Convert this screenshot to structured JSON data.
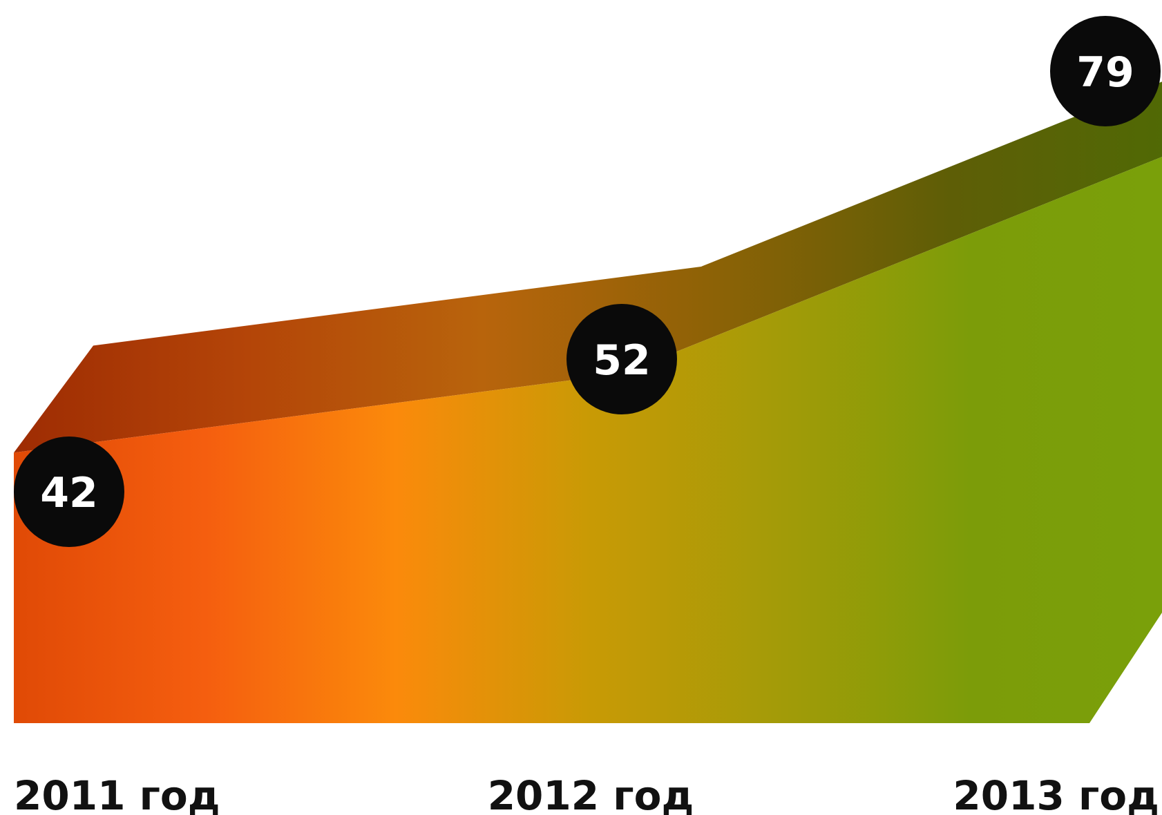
{
  "chart_data": {
    "type": "area",
    "categories": [
      "2011 год",
      "2012 год",
      "2013 год"
    ],
    "values": [
      42,
      52,
      79
    ],
    "data_labels": [
      "42",
      "52",
      "79"
    ],
    "title": "",
    "xlabel": "",
    "ylabel": "",
    "grid": false,
    "legend": "none"
  },
  "colors": {
    "gradient_front": [
      "#e04a06",
      "#f55e0f",
      "#fb8a0b",
      "#c99a05",
      "#a39b08",
      "#7c9c09",
      "#7aa00a"
    ],
    "gradient_top": [
      "#9e2c03",
      "#b44508",
      "#b8640c",
      "#8c6206",
      "#5e5e06",
      "#4f6a05"
    ],
    "marker_fill": "#0a0a0a",
    "marker_text": "#ffffff"
  }
}
